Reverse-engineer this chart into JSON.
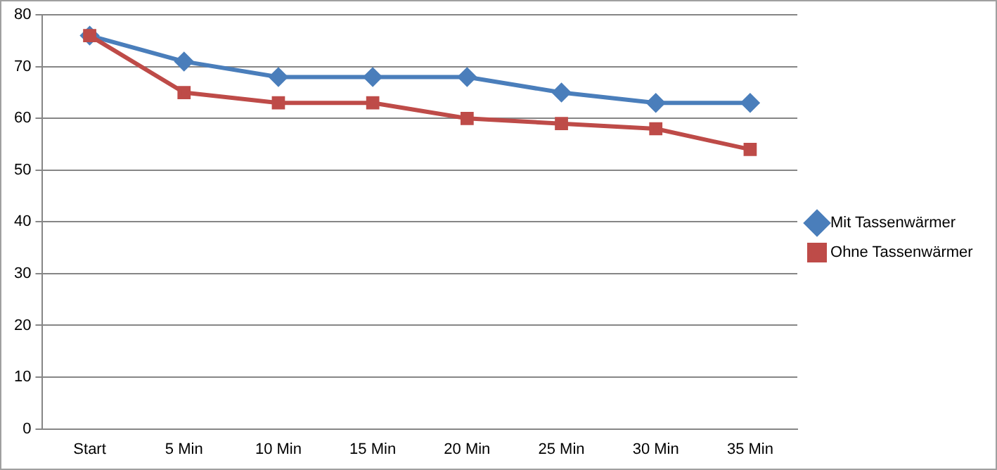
{
  "chart_data": {
    "type": "line",
    "categories": [
      "Start",
      "5 Min",
      "10 Min",
      "15 Min",
      "20 Min",
      "25 Min",
      "30 Min",
      "35 Min"
    ],
    "series": [
      {
        "name": "Mit Tassenwärmer",
        "color": "#4a7ebb",
        "marker": "diamond",
        "values": [
          76,
          71,
          68,
          68,
          68,
          65,
          63,
          63
        ]
      },
      {
        "name": "Ohne Tassenwärmer",
        "color": "#be4b48",
        "marker": "square",
        "values": [
          76,
          65,
          63,
          63,
          60,
          59,
          58,
          54
        ]
      }
    ],
    "ylim": [
      0,
      80
    ],
    "yticks": [
      0,
      10,
      20,
      30,
      40,
      50,
      60,
      70,
      80
    ],
    "grid": "y",
    "legend": "right",
    "line_style": "solid"
  }
}
